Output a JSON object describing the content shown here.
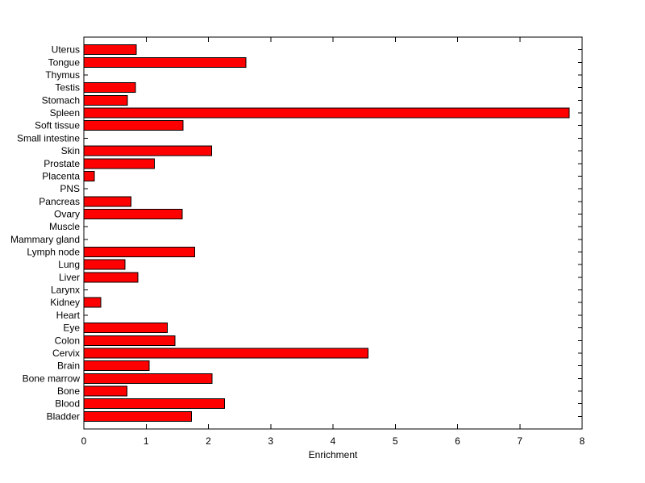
{
  "figure": {
    "background": "#FFFFFF"
  },
  "chart_data": {
    "type": "bar",
    "orientation": "horizontal",
    "title": "",
    "xlabel": "Enrichment",
    "ylabel": "",
    "xlim": [
      0,
      8
    ],
    "xticks": [
      0,
      1,
      2,
      3,
      4,
      5,
      6,
      7,
      8
    ],
    "grid": false,
    "legend": null,
    "bar_color": "#FF0000",
    "bar_edge_color": "#000000",
    "axis_color": "#000000",
    "categories": [
      "Uterus",
      "Tongue",
      "Thymus",
      "Testis",
      "Stomach",
      "Spleen",
      "Soft tissue",
      "Small intestine",
      "Skin",
      "Prostate",
      "Placenta",
      "PNS",
      "Pancreas",
      "Ovary",
      "Muscle",
      "Mammary gland",
      "Lymph node",
      "Lung",
      "Liver",
      "Larynx",
      "Kidney",
      "Heart",
      "Eye",
      "Colon",
      "Cervix",
      "Brain",
      "Bone marrow",
      "Bone",
      "Blood",
      "Bladder"
    ],
    "values": [
      0.84,
      2.6,
      0,
      0.83,
      0.7,
      7.79,
      1.59,
      0,
      2.05,
      1.13,
      0.17,
      0,
      0.76,
      1.58,
      0,
      0,
      1.78,
      0.66,
      0.87,
      0,
      0.27,
      0,
      1.34,
      1.46,
      4.56,
      1.05,
      2.06,
      0.69,
      2.26,
      1.73
    ]
  }
}
